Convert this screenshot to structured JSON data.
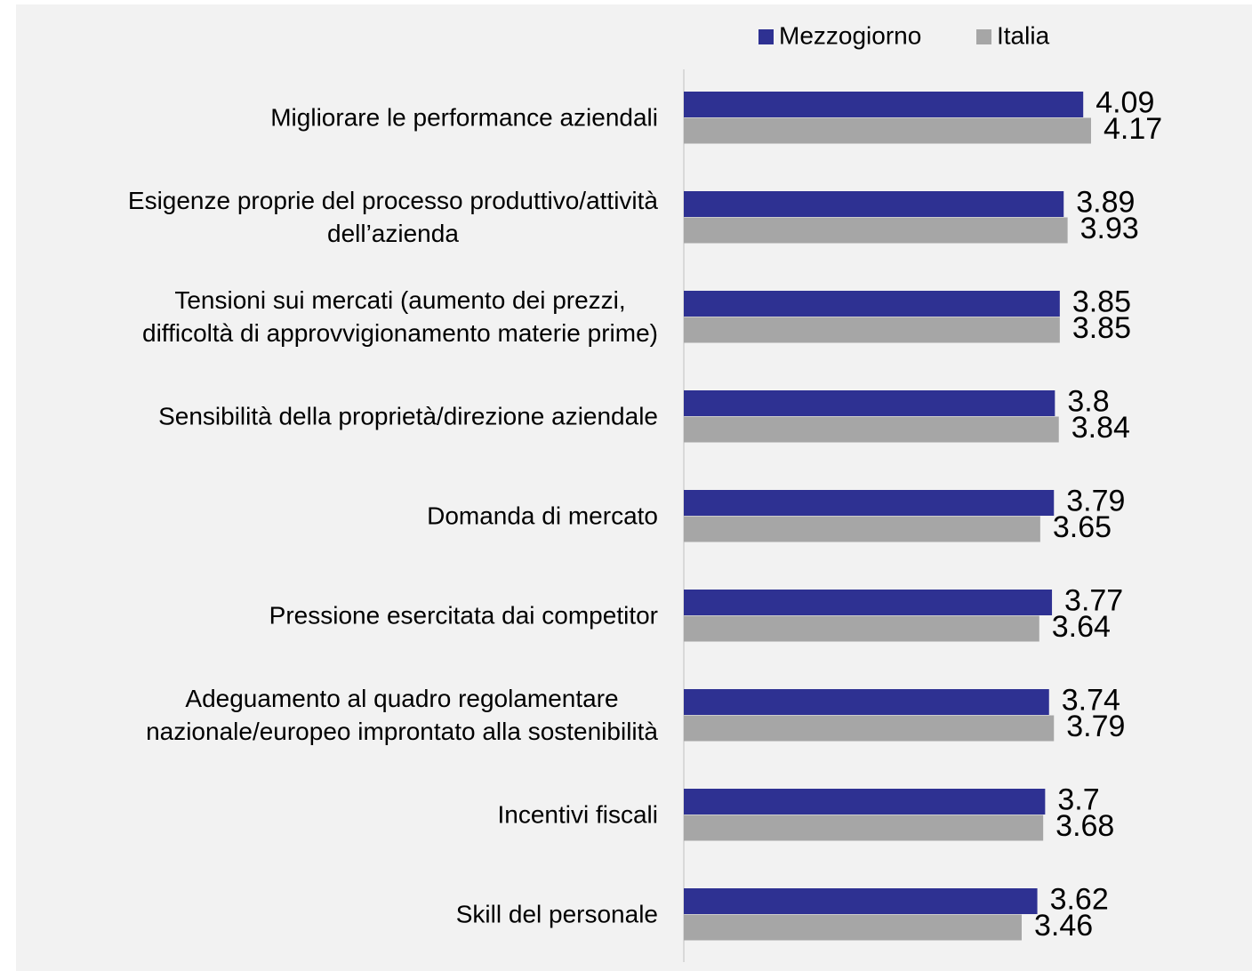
{
  "chart_data": {
    "type": "bar",
    "orientation": "horizontal",
    "categories": [
      "Migliorare le performance aziendali",
      "Esigenze proprie del processo produttivo/attività\ndell’azienda",
      "Tensioni sui mercati (aumento dei prezzi,\ndifficoltà di approvvigionamento materie prime)",
      "Sensibilità della proprietà/direzione aziendale",
      "Domanda di mercato",
      "Pressione esercitata dai competitor",
      "Adeguamento al quadro regolamentare\nnazionale/europeo improntato alla sostenibilità",
      "Incentivi fiscali",
      "Skill del personale"
    ],
    "series": [
      {
        "name": "Mezzogiorno",
        "color": "#2e3192",
        "values": [
          4.09,
          3.89,
          3.85,
          3.8,
          3.79,
          3.77,
          3.74,
          3.7,
          3.62
        ]
      },
      {
        "name": "Italia",
        "color": "#a6a6a6",
        "values": [
          4.17,
          3.93,
          3.85,
          3.84,
          3.65,
          3.64,
          3.79,
          3.68,
          3.46
        ]
      }
    ],
    "xlim": [
      0,
      5.8
    ],
    "legend": "top"
  }
}
